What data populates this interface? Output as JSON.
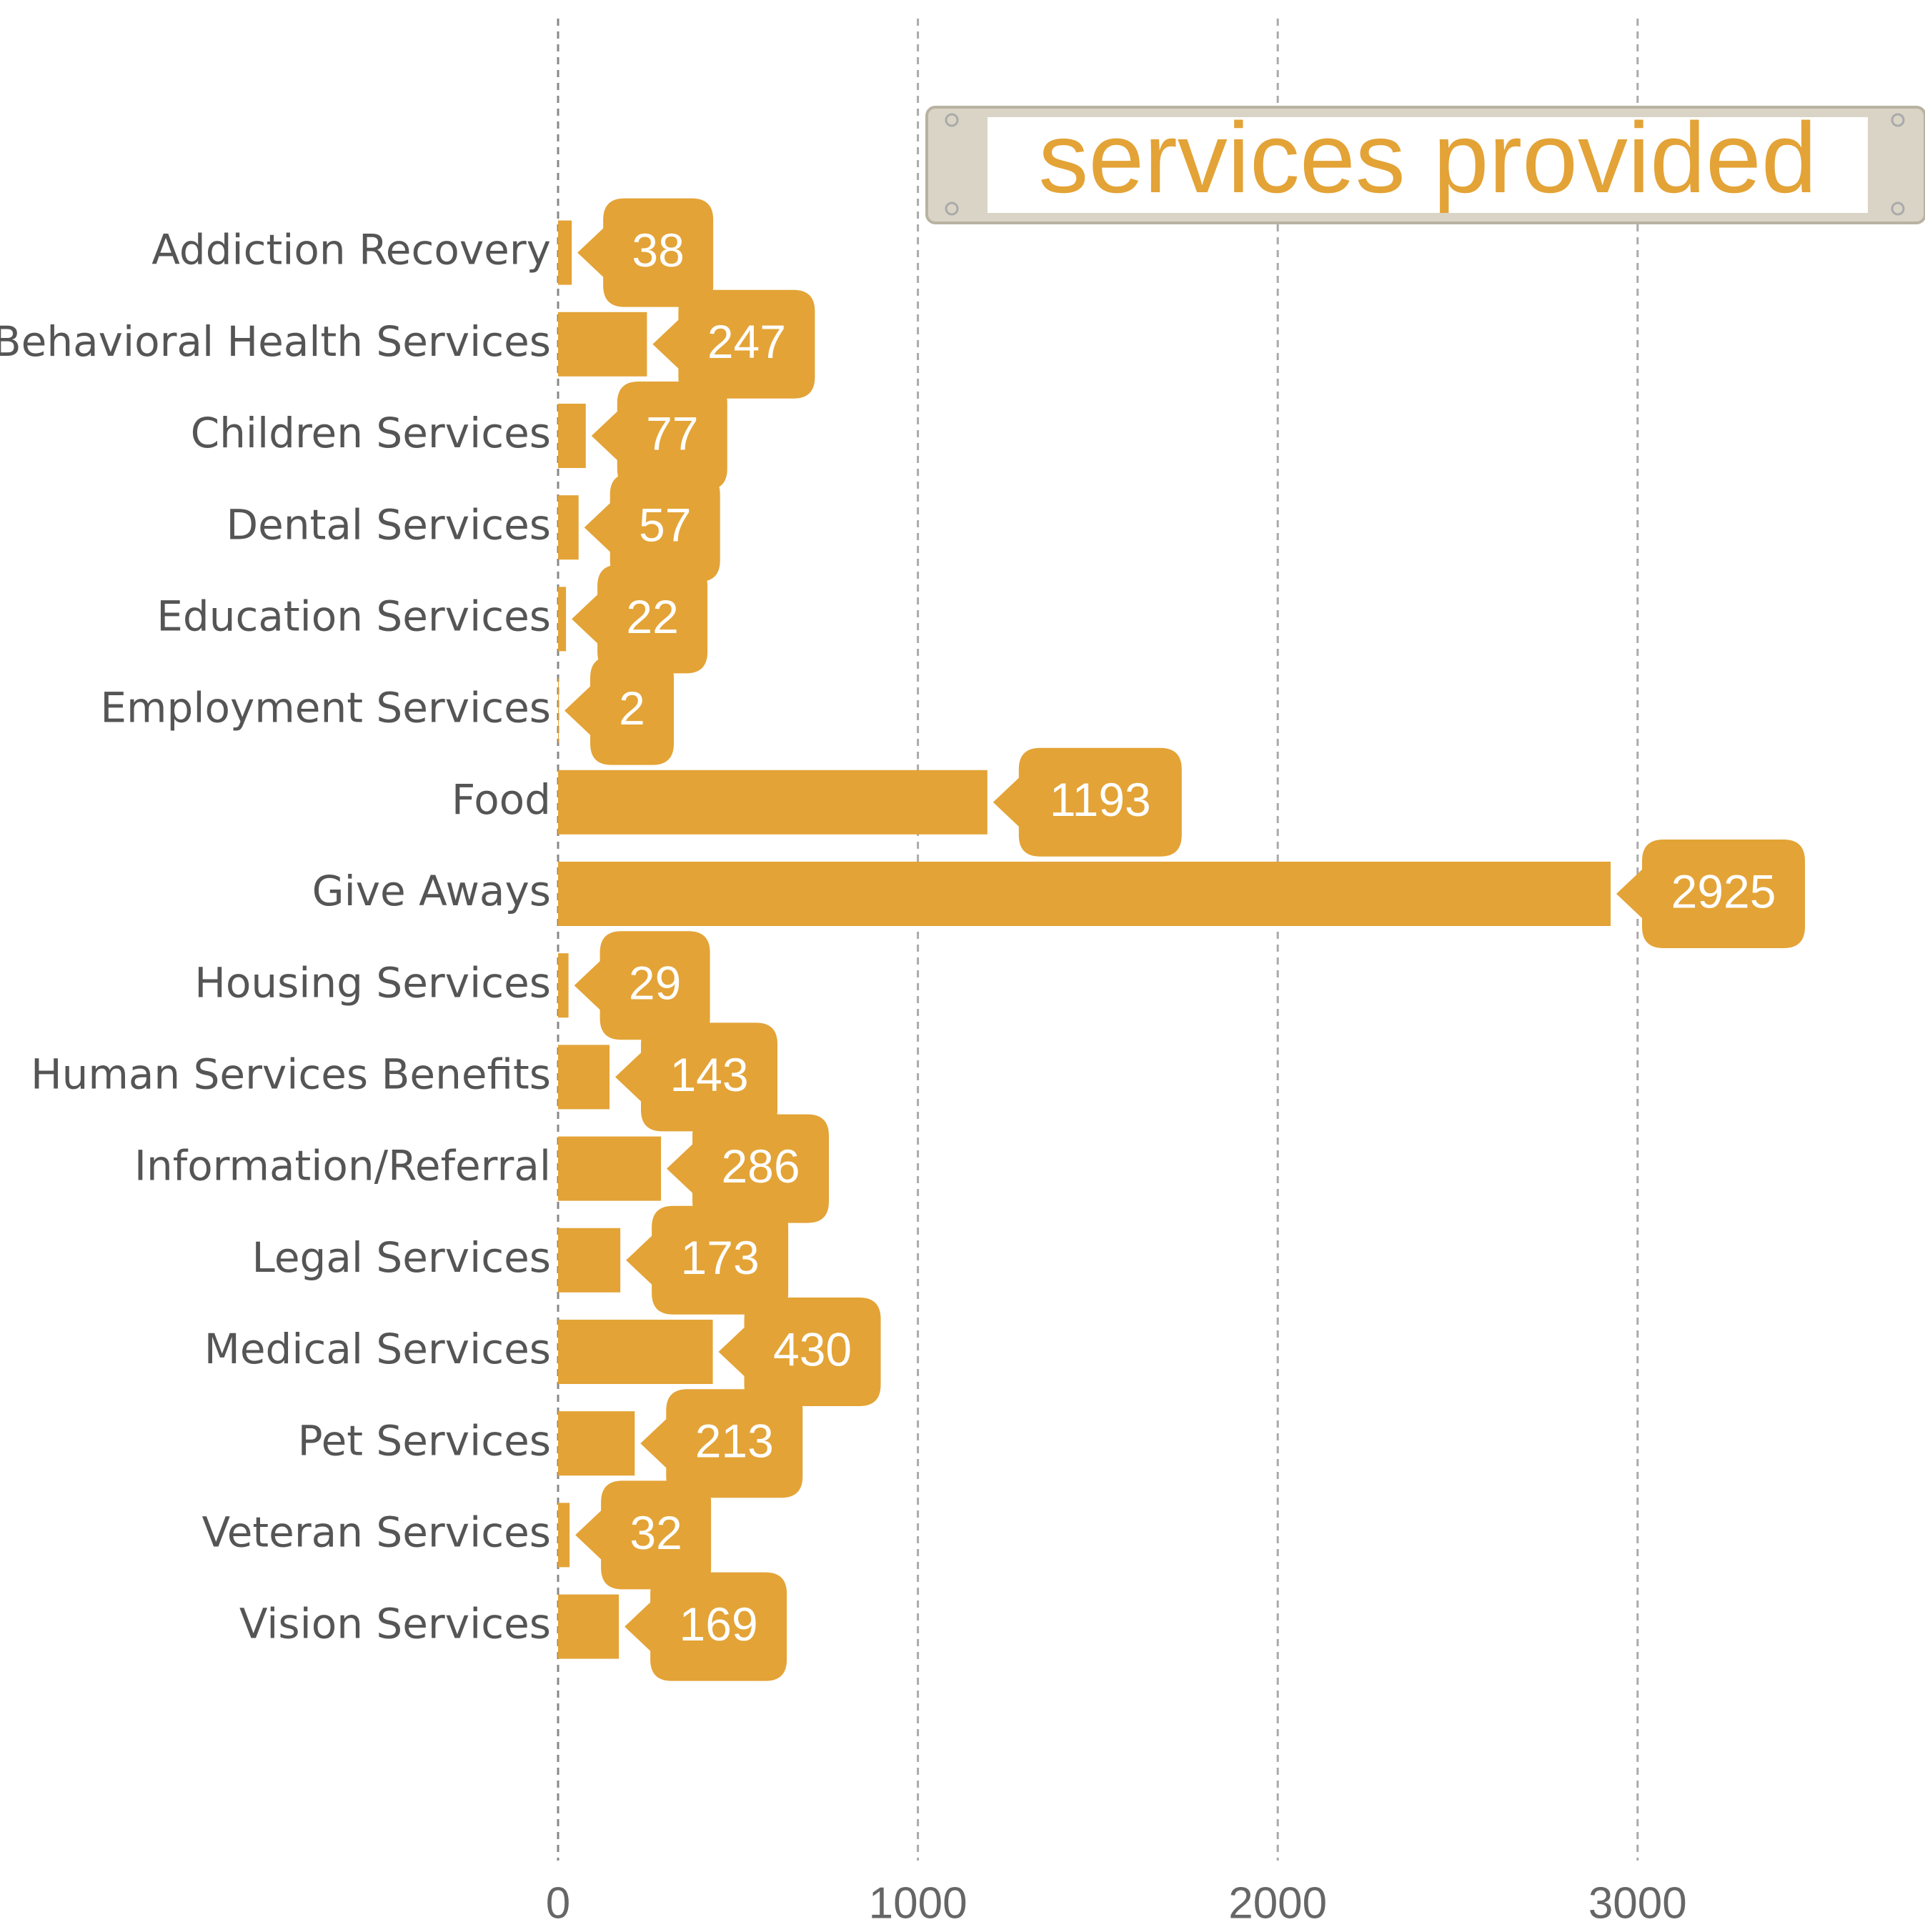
{
  "chart_data": {
    "type": "bar",
    "orientation": "horizontal",
    "title": "services provided",
    "categories": [
      "Addiction Recovery",
      "Behavioral Health Services",
      "Children Services",
      "Dental Services",
      "Education Services",
      "Employment Services",
      "Food",
      "Give Aways",
      "Housing Services",
      "Human Services Benefits",
      "Information/Referral",
      "Legal Services",
      "Medical Services",
      "Pet Services",
      "Veteran Services",
      "Vision Services"
    ],
    "values": [
      38,
      247,
      77,
      57,
      22,
      2,
      1193,
      2925,
      29,
      143,
      286,
      173,
      430,
      213,
      32,
      169
    ],
    "color": "#e3a336",
    "xlim": [
      0,
      3800
    ],
    "xticks": [
      0,
      1000,
      2000,
      3000
    ],
    "grid": true
  }
}
